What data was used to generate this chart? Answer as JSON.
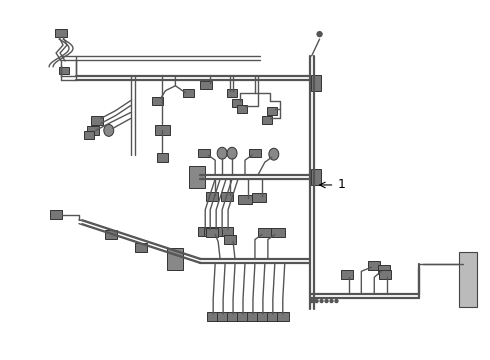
{
  "bg_color": "#ffffff",
  "line_color": "#555555",
  "lw": 1.0,
  "lw2": 1.6,
  "fig_width": 4.9,
  "fig_height": 3.6,
  "dpi": 100
}
